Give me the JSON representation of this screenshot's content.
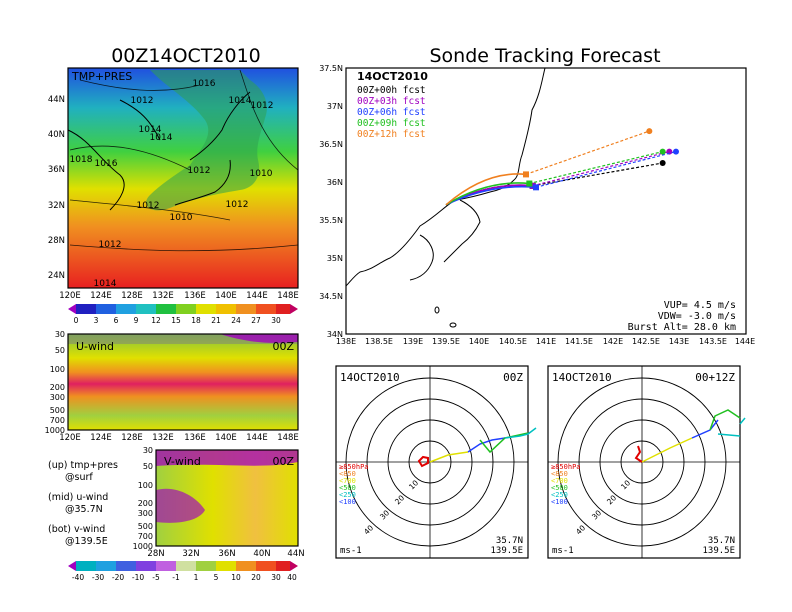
{
  "left_panel": {
    "title": "00Z14OCT2010",
    "surface_map": {
      "label": "TMP+PRES",
      "lat_ticks": [
        "44N",
        "40N",
        "36N",
        "32N",
        "28N",
        "24N"
      ],
      "lon_ticks": [
        "120E",
        "124E",
        "128E",
        "132E",
        "136E",
        "140E",
        "144E",
        "148E"
      ],
      "isobar_labels": [
        "1016",
        "1012",
        "1014",
        "1012",
        "1014",
        "1014",
        "1018",
        "1016",
        "1012",
        "1010",
        "1012",
        "1012",
        "1010",
        "1012",
        "1014",
        "1012"
      ],
      "colorbar_ticks": [
        "0",
        "3",
        "6",
        "9",
        "12",
        "15",
        "18",
        "21",
        "24",
        "27",
        "30"
      ]
    },
    "uwind": {
      "label": "U-wind",
      "time": "00Z",
      "p_ticks": [
        "30",
        "50",
        "100",
        "200",
        "300",
        "500",
        "700",
        "1000"
      ],
      "lon_ticks": [
        "120E",
        "124E",
        "128E",
        "132E",
        "136E",
        "140E",
        "144E",
        "148E"
      ]
    },
    "vwind": {
      "label": "V-wind",
      "time": "00Z",
      "p_ticks": [
        "30",
        "50",
        "100",
        "200",
        "300",
        "500",
        "700",
        "1000"
      ],
      "lat_ticks": [
        "28N",
        "32N",
        "36N",
        "40N",
        "44N"
      ]
    },
    "notes": {
      "up": "(up) tmp+pres",
      "up_sub": "@surf",
      "mid": "(mid) u-wind",
      "mid_sub": "@35.7N",
      "bot": "(bot) v-wind",
      "bot_sub": "@139.5E"
    },
    "wind_colorbar_ticks": [
      "-40",
      "-30",
      "-20",
      "-10",
      "-5",
      "-1",
      "1",
      "5",
      "10",
      "20",
      "30",
      "40"
    ]
  },
  "track_panel": {
    "title": "Sonde Tracking Forecast",
    "date": "14OCT2010",
    "legend": [
      {
        "label": "00Z+00h fcst",
        "color": "#000000"
      },
      {
        "label": "00Z+03h fcst",
        "color": "#a000c0"
      },
      {
        "label": "00Z+06h fcst",
        "color": "#2040ff"
      },
      {
        "label": "00Z+09h fcst",
        "color": "#20c020"
      },
      {
        "label": "00Z+12h fcst",
        "color": "#f08020"
      }
    ],
    "info": {
      "vup": "VUP=  4.5 m/s",
      "vdw": "VDW= -3.0 m/s",
      "burst": "Burst Alt= 28.0 km"
    },
    "lat_ticks": [
      "37.5N",
      "37N",
      "36.5N",
      "36N",
      "35.5N",
      "35N",
      "34.5N",
      "34N"
    ],
    "lon_ticks": [
      "138E",
      "138.5E",
      "139E",
      "139.5E",
      "140E",
      "140.5E",
      "141E",
      "141.5E",
      "142E",
      "142.5E",
      "143E",
      "143.5E",
      "144E"
    ]
  },
  "chart_data": {
    "type": "line",
    "title": "Sonde Tracking Forecast",
    "xlim": [
      138,
      144
    ],
    "ylim": [
      34,
      37.5
    ],
    "series": [
      {
        "name": "00Z+00h fcst",
        "launch": [
          139.5,
          35.7
        ],
        "end": [
          142.75,
          36.25
        ],
        "landing": [
          140.8,
          35.95
        ]
      },
      {
        "name": "00Z+03h fcst",
        "launch": [
          139.5,
          35.7
        ],
        "end": [
          142.85,
          36.4
        ],
        "landing": [
          140.8,
          35.95
        ]
      },
      {
        "name": "00Z+06h fcst",
        "launch": [
          139.5,
          35.7
        ],
        "end": [
          142.95,
          36.4
        ],
        "landing": [
          140.85,
          35.93
        ]
      },
      {
        "name": "00Z+09h fcst",
        "launch": [
          139.5,
          35.7
        ],
        "end": [
          142.75,
          36.4
        ],
        "landing": [
          140.75,
          35.98
        ]
      },
      {
        "name": "00Z+12h fcst",
        "launch": [
          139.5,
          35.7
        ],
        "end": [
          142.55,
          36.67
        ],
        "landing": [
          140.7,
          36.1
        ]
      }
    ]
  },
  "hodo_left": {
    "date": "14OCT2010",
    "time": "00Z",
    "loc_lat": "35.7N",
    "loc_lon": "139.5E",
    "unit": "ms-1"
  },
  "hodo_right": {
    "date": "14OCT2010",
    "time": "00+12Z",
    "loc_lat": "35.7N",
    "loc_lon": "139.5E",
    "unit": "ms-1"
  },
  "hodo_levels": [
    {
      "label": "≥850hPa",
      "color": "#e00000"
    },
    {
      "label": "<850",
      "color": "#f08020"
    },
    {
      "label": "<700",
      "color": "#e0e000"
    },
    {
      "label": "<500",
      "color": "#20c020"
    },
    {
      "label": "<250",
      "color": "#00c0c0"
    },
    {
      "label": "<100",
      "color": "#2040ff"
    }
  ],
  "hodo_ring_labels": [
    "10",
    "20",
    "30",
    "40"
  ]
}
